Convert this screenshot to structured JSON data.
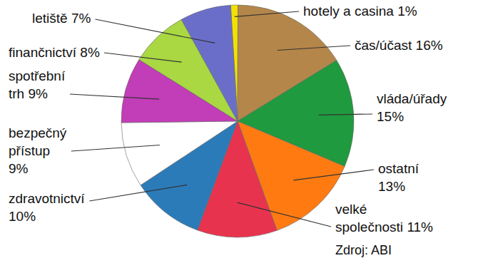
{
  "chart_data": {
    "type": "pie",
    "categories": [
      "hotely a casina",
      "čas/účast",
      "vláda/úřady",
      "ostatní",
      "velké společnosti",
      "zdravotnictví",
      "bezpečný přístup",
      "spotřební trh",
      "finančnictví",
      "letiště"
    ],
    "values": [
      1,
      16,
      15,
      13,
      11,
      10,
      9,
      9,
      8,
      7
    ],
    "value_labels": [
      "1%",
      "16%",
      "15%",
      "13%",
      "11%",
      "10%",
      "9%",
      "9%",
      "8%",
      "7%"
    ],
    "colors": [
      "#f2e000",
      "#b5864a",
      "#1f9a3e",
      "#ff7b12",
      "#e8334f",
      "#2b7bb9",
      "#ffffff",
      "#c23db8",
      "#a9d842",
      "#6b6ec9"
    ],
    "data_labels": true,
    "source": "Zdroj: ABI"
  }
}
